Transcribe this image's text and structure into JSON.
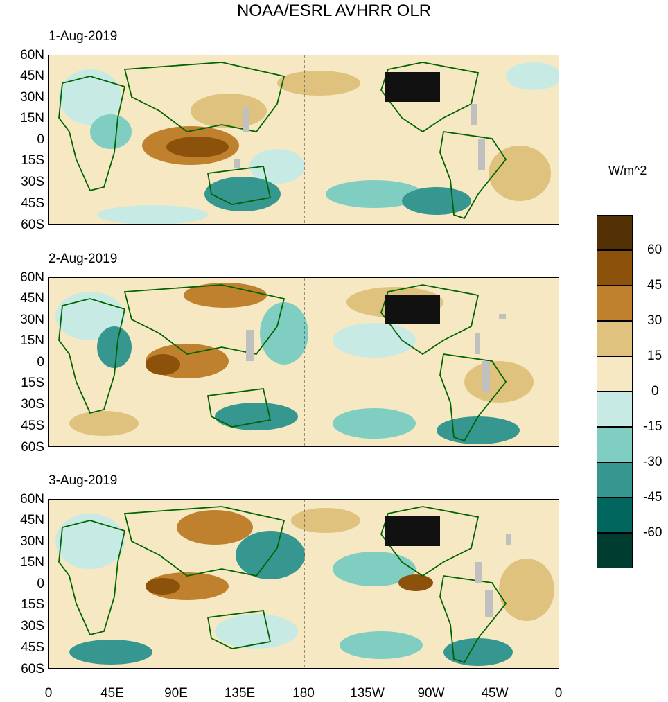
{
  "title": "NOAA/ESRL AVHRR OLR",
  "units": "W/m^2",
  "panels": [
    {
      "date": "1-Aug-2019"
    },
    {
      "date": "2-Aug-2019"
    },
    {
      "date": "3-Aug-2019"
    }
  ],
  "lat_labels": [
    "60N",
    "45N",
    "30N",
    "15N",
    "0",
    "15S",
    "30S",
    "45S",
    "60S"
  ],
  "lon_labels": [
    "0",
    "45E",
    "90E",
    "135E",
    "180",
    "135W",
    "90W",
    "45W",
    "0"
  ],
  "colorbar": {
    "labels": [
      "60",
      "45",
      "30",
      "15",
      "0",
      "-15",
      "-30",
      "-45",
      "-60"
    ],
    "colors": [
      "#543005",
      "#8c510a",
      "#bf812d",
      "#dfc27d",
      "#f6e8c3",
      "#c7eae5",
      "#80cdc1",
      "#35978f",
      "#01665e",
      "#003c30"
    ]
  },
  "map_colors": {
    "land_outline": "#006400",
    "missing": "#c0c0c0",
    "dateline": "#333333"
  }
}
